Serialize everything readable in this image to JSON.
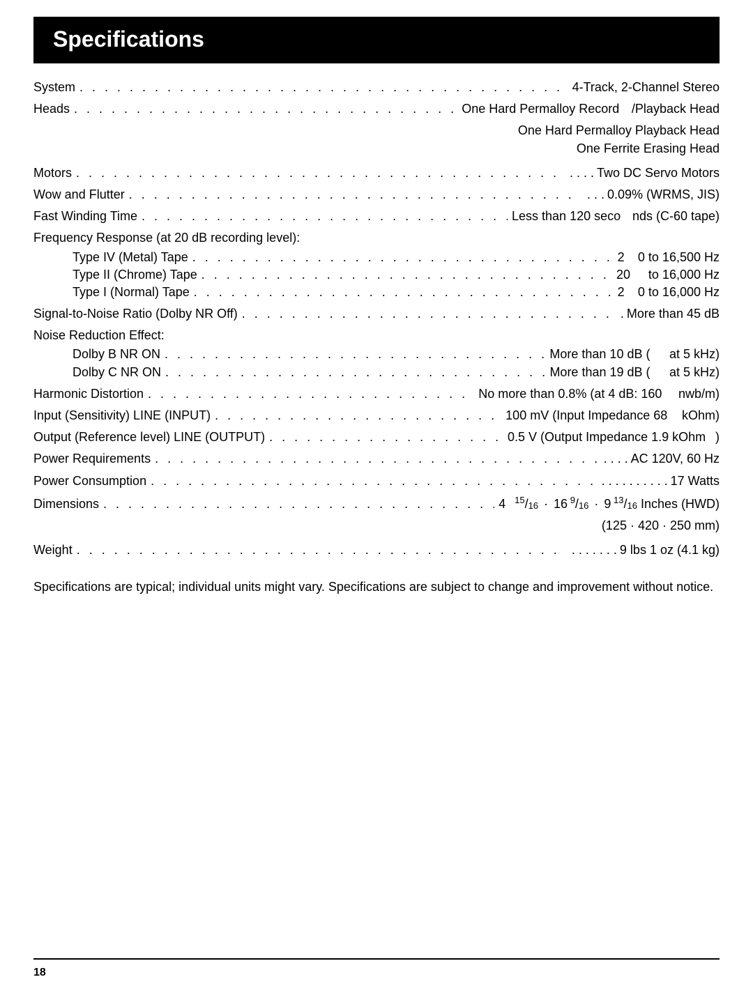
{
  "title": "Specifications",
  "rows": {
    "system": {
      "label": "System",
      "value": "4-Track, 2-Channel Stereo"
    },
    "heads": {
      "label": "Heads",
      "part1": "One Hard Permalloy Record",
      "part2": "/Playback Head",
      "line2": "One Hard Permalloy Playback Head",
      "line3": "One Ferrite Erasing Head"
    },
    "motors": {
      "label": "Motors",
      "dots_prefix": ". . . .",
      "value": "Two DC Servo Motors"
    },
    "wow": {
      "label": "Wow and Flutter",
      "dots_prefix": ". . .",
      "value": "0.09% (WRMS, JIS)"
    },
    "fastwind": {
      "label": "Fast Winding Time",
      "mid": "Less than 120 seco",
      "right": "nds (C-60 tape)"
    },
    "freq": {
      "header": "Frequency Response (at  20 dB recording level):",
      "r1": {
        "label": "Type IV (Metal) Tape",
        "mid": "2",
        "right": "0 to 16,500 Hz"
      },
      "r2": {
        "label": "Type II (Chrome) Tape",
        "mid": "20",
        "right": "to 16,000 Hz"
      },
      "r3": {
        "label": "Type I (Normal) Tape",
        "mid": "2",
        "right": "0 to 16,000 Hz"
      }
    },
    "snr": {
      "label": "Signal-to-Noise Ratio (Dolby NR Off)",
      "dots_prefix": ".",
      "value": "More than 45 dB"
    },
    "nr": {
      "header": "Noise Reduction Effect:",
      "r1": {
        "label": "Dolby B NR ON",
        "mid": "More than 10 dB (",
        "right": "at 5 kHz)"
      },
      "r2": {
        "label": "Dolby C NR ON",
        "mid": "More than 19 dB (",
        "right": "at 5 kHz)"
      }
    },
    "hd": {
      "label": "Harmonic Distortion",
      "mid": "No more than 0.8% (at  4 dB: 160",
      "right": "nwb/m)"
    },
    "input": {
      "label": "Input (Sensitivity) LINE (INPUT)",
      "mid": "100 mV (Input Impedance 68",
      "right": "kOhm)"
    },
    "output": {
      "label": "Output (Reference level) LINE (OUTPUT)",
      "mid": "0.5 V (Output Impedance 1.9 kOhm",
      "right": ")"
    },
    "power_req": {
      "label": "Power Requirements",
      "dots_prefix": ". . . .",
      "value": "AC 120V, 60 Hz"
    },
    "power_cons": {
      "label": "Power Consumption",
      "dots_prefix": ". . . . . . . . . .",
      "value": "17 Watts"
    },
    "dims": {
      "label": "Dimensions",
      "mid": "4",
      "right_html": "dims_frac",
      "line2": "(125  ·  420  ·  250 mm)"
    },
    "weight": {
      "label": "Weight",
      "dots_prefix": ". . . . . . .",
      "value": "9 lbs 1 oz (4.1 kg)"
    }
  },
  "footnote": "Specifications are typical; individual units might vary. Specifications are subject to change and improvement without notice.",
  "page_number": "18",
  "colors": {
    "bg": "#ffffff",
    "text": "#000000",
    "bar_bg": "#000000",
    "bar_text": "#ffffff"
  }
}
